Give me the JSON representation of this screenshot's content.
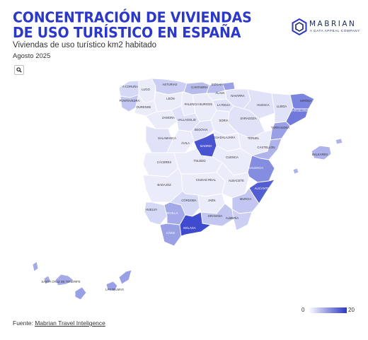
{
  "header": {
    "title": "CONCENTRACIÓN DE VIVIENDAS DE USO TURÍSTICO EN ESPAÑA",
    "subtitle": "Viviendas de uso turístico km2 habitado",
    "date": "Agosto 2025"
  },
  "logo": {
    "name": "MABRIAN",
    "tagline": "A DATA APPEAL COMPANY"
  },
  "controls": {
    "search_icon": "search-icon"
  },
  "legend": {
    "min": "0",
    "max": "20",
    "color_min": "#ffffff",
    "color_max": "#2b38c9"
  },
  "footer": {
    "prefix": "Fuente: ",
    "link_text": "Mabrian Travel Inteligence"
  },
  "map": {
    "colors": {
      "stroke": "#ffffff",
      "scale_low": "#eef0fb",
      "scale_high": "#2b38c9"
    },
    "provinces": [
      {
        "id": "a-coruna",
        "label": "A CORUÑA",
        "value": 3
      },
      {
        "id": "lugo",
        "label": "LUGO",
        "value": 1
      },
      {
        "id": "pontevedra",
        "label": "PONTEVEDRA",
        "value": 5
      },
      {
        "id": "ourense",
        "label": "OURENSE",
        "value": 1
      },
      {
        "id": "asturias",
        "label": "ASTURIAS",
        "value": 4
      },
      {
        "id": "cantabria",
        "label": "CANTABRIA",
        "value": 6
      },
      {
        "id": "bizkaia",
        "label": "BIZKAIA",
        "value": 6
      },
      {
        "id": "gipuzkoa",
        "label": "",
        "value": 9
      },
      {
        "id": "alava",
        "label": "ÁLAVA",
        "value": 1
      },
      {
        "id": "navarra",
        "label": "NAVARRA",
        "value": 2
      },
      {
        "id": "leon",
        "label": "LEÓN",
        "value": 1
      },
      {
        "id": "palencia",
        "label": "PALENCIA",
        "value": 1
      },
      {
        "id": "burgos",
        "label": "BURGOS",
        "value": 1
      },
      {
        "id": "la-rioja",
        "label": "LA RIOJA",
        "value": 2
      },
      {
        "id": "zamora",
        "label": "ZAMORA",
        "value": 1
      },
      {
        "id": "valladolid",
        "label": "VALLADOLID",
        "value": 2
      },
      {
        "id": "soria",
        "label": "SORIA",
        "value": 1
      },
      {
        "id": "zaragoza",
        "label": "ZARAGOZA",
        "value": 2
      },
      {
        "id": "huesca",
        "label": "HUESCA",
        "value": 2
      },
      {
        "id": "lleida",
        "label": "LLEIDA",
        "value": 2
      },
      {
        "id": "girona",
        "label": "GIRONA",
        "value": 12
      },
      {
        "id": "barcelona",
        "label": "BARCELONA",
        "value": 13
      },
      {
        "id": "tarragona",
        "label": "TARRAGONA",
        "value": 9
      },
      {
        "id": "salamanca",
        "label": "SALAMANCA",
        "value": 2
      },
      {
        "id": "avila",
        "label": "ÁVILA",
        "value": 1
      },
      {
        "id": "segovia",
        "label": "SEGOVIA",
        "value": 2
      },
      {
        "id": "madrid",
        "label": "MADRID",
        "value": 17
      },
      {
        "id": "guadalajara",
        "label": "GUADALAJARA",
        "value": 1
      },
      {
        "id": "teruel",
        "label": "TERUEL",
        "value": 1
      },
      {
        "id": "castellon",
        "label": "CASTELLÓN",
        "value": 7
      },
      {
        "id": "caceres",
        "label": "CÁCERES",
        "value": 1
      },
      {
        "id": "toledo",
        "label": "TOLEDO",
        "value": 1
      },
      {
        "id": "cuenca",
        "label": "CUENCA",
        "value": 1
      },
      {
        "id": "valencia",
        "label": "VALENCIA",
        "value": 11
      },
      {
        "id": "badajoz",
        "label": "BADAJOZ",
        "value": 1
      },
      {
        "id": "ciudad-real",
        "label": "CIUDAD REAL",
        "value": 1
      },
      {
        "id": "albacete",
        "label": "ALBACETE",
        "value": 1
      },
      {
        "id": "alicante",
        "label": "ALICANTE",
        "value": 16
      },
      {
        "id": "huelva",
        "label": "HUELVA",
        "value": 3
      },
      {
        "id": "sevilla",
        "label": "SEVILLA",
        "value": 8
      },
      {
        "id": "cordoba",
        "label": "CÓRDOBA",
        "value": 3
      },
      {
        "id": "jaen",
        "label": "JAÉN",
        "value": 1
      },
      {
        "id": "granada",
        "label": "GRANADA",
        "value": 5
      },
      {
        "id": "murcia",
        "label": "MURCIA",
        "value": 5
      },
      {
        "id": "almeria",
        "label": "ALMERÍA",
        "value": 4
      },
      {
        "id": "cadiz",
        "label": "CÁDIZ",
        "value": 9
      },
      {
        "id": "malaga",
        "label": "MÁLAGA",
        "value": 18
      },
      {
        "id": "baleares",
        "label": "BALEARES",
        "value": 7
      },
      {
        "id": "santa-cruz-de-tenerife",
        "label": "SANTA CRUZ DE TENERIFE",
        "value": 8
      },
      {
        "id": "las-palmas",
        "label": "LAS PALMAS",
        "value": 9
      }
    ]
  }
}
